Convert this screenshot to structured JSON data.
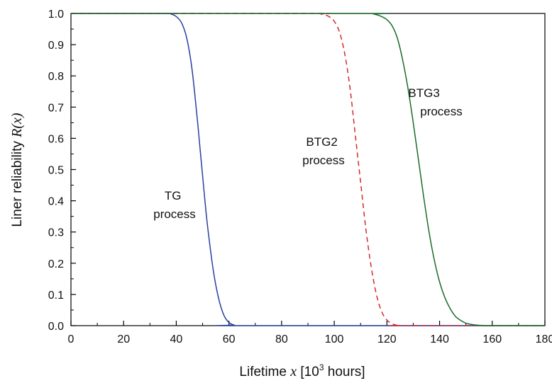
{
  "chart_data": {
    "type": "line",
    "xlabel": {
      "prefix": "Lifetime ",
      "var": "x",
      "suffix_pre": " [10",
      "sup": "3",
      "suffix_post": " hours]"
    },
    "ylabel": {
      "prefix": "Liner reliability  ",
      "var": "R(x)"
    },
    "xlim": [
      0,
      180
    ],
    "ylim": [
      0,
      1.0
    ],
    "xticks": [
      "0",
      "20",
      "40",
      "60",
      "80",
      "100",
      "120",
      "140",
      "160",
      "180"
    ],
    "yticks": [
      "0.0",
      "0.1",
      "0.2",
      "0.3",
      "0.4",
      "0.5",
      "0.6",
      "0.7",
      "0.8",
      "0.9",
      "1.0"
    ],
    "grid": false,
    "series": [
      {
        "label_lines": [
          "TG",
          "process"
        ],
        "color": "#2b3f9e",
        "dash": "solid",
        "x": [
          0,
          35,
          38,
          40,
          42,
          44,
          46,
          48,
          49,
          50,
          51,
          52,
          54,
          56,
          58,
          60,
          62,
          64,
          180
        ],
        "y": [
          1.0,
          1.0,
          0.998,
          0.99,
          0.97,
          0.92,
          0.82,
          0.66,
          0.57,
          0.48,
          0.39,
          0.31,
          0.18,
          0.09,
          0.035,
          0.01,
          0.002,
          0.0,
          0.0
        ]
      },
      {
        "label_lines": [
          "BTG2",
          "process"
        ],
        "color": "#d62728",
        "dash": "dashed",
        "x": [
          0,
          90,
          95,
          98,
          100,
          102,
          104,
          106,
          108,
          110,
          112,
          114,
          116,
          118,
          120,
          122,
          124,
          126,
          180
        ],
        "y": [
          1.0,
          1.0,
          0.998,
          0.99,
          0.975,
          0.94,
          0.87,
          0.76,
          0.61,
          0.46,
          0.31,
          0.19,
          0.1,
          0.045,
          0.018,
          0.006,
          0.001,
          0.0,
          0.0
        ]
      },
      {
        "label_lines": [
          "BTG3",
          "process"
        ],
        "color": "#1a6b2a",
        "dash": "solid",
        "x": [
          0,
          110,
          115,
          118,
          120,
          122,
          124,
          126,
          128,
          130,
          132,
          134,
          136,
          138,
          140,
          142,
          144,
          146,
          148,
          150,
          152,
          155,
          158,
          162,
          180
        ],
        "y": [
          1.0,
          1.0,
          0.998,
          0.99,
          0.98,
          0.96,
          0.92,
          0.85,
          0.76,
          0.65,
          0.53,
          0.41,
          0.3,
          0.21,
          0.14,
          0.09,
          0.055,
          0.03,
          0.017,
          0.008,
          0.004,
          0.001,
          0.0,
          0.0,
          0.0
        ]
      }
    ]
  }
}
